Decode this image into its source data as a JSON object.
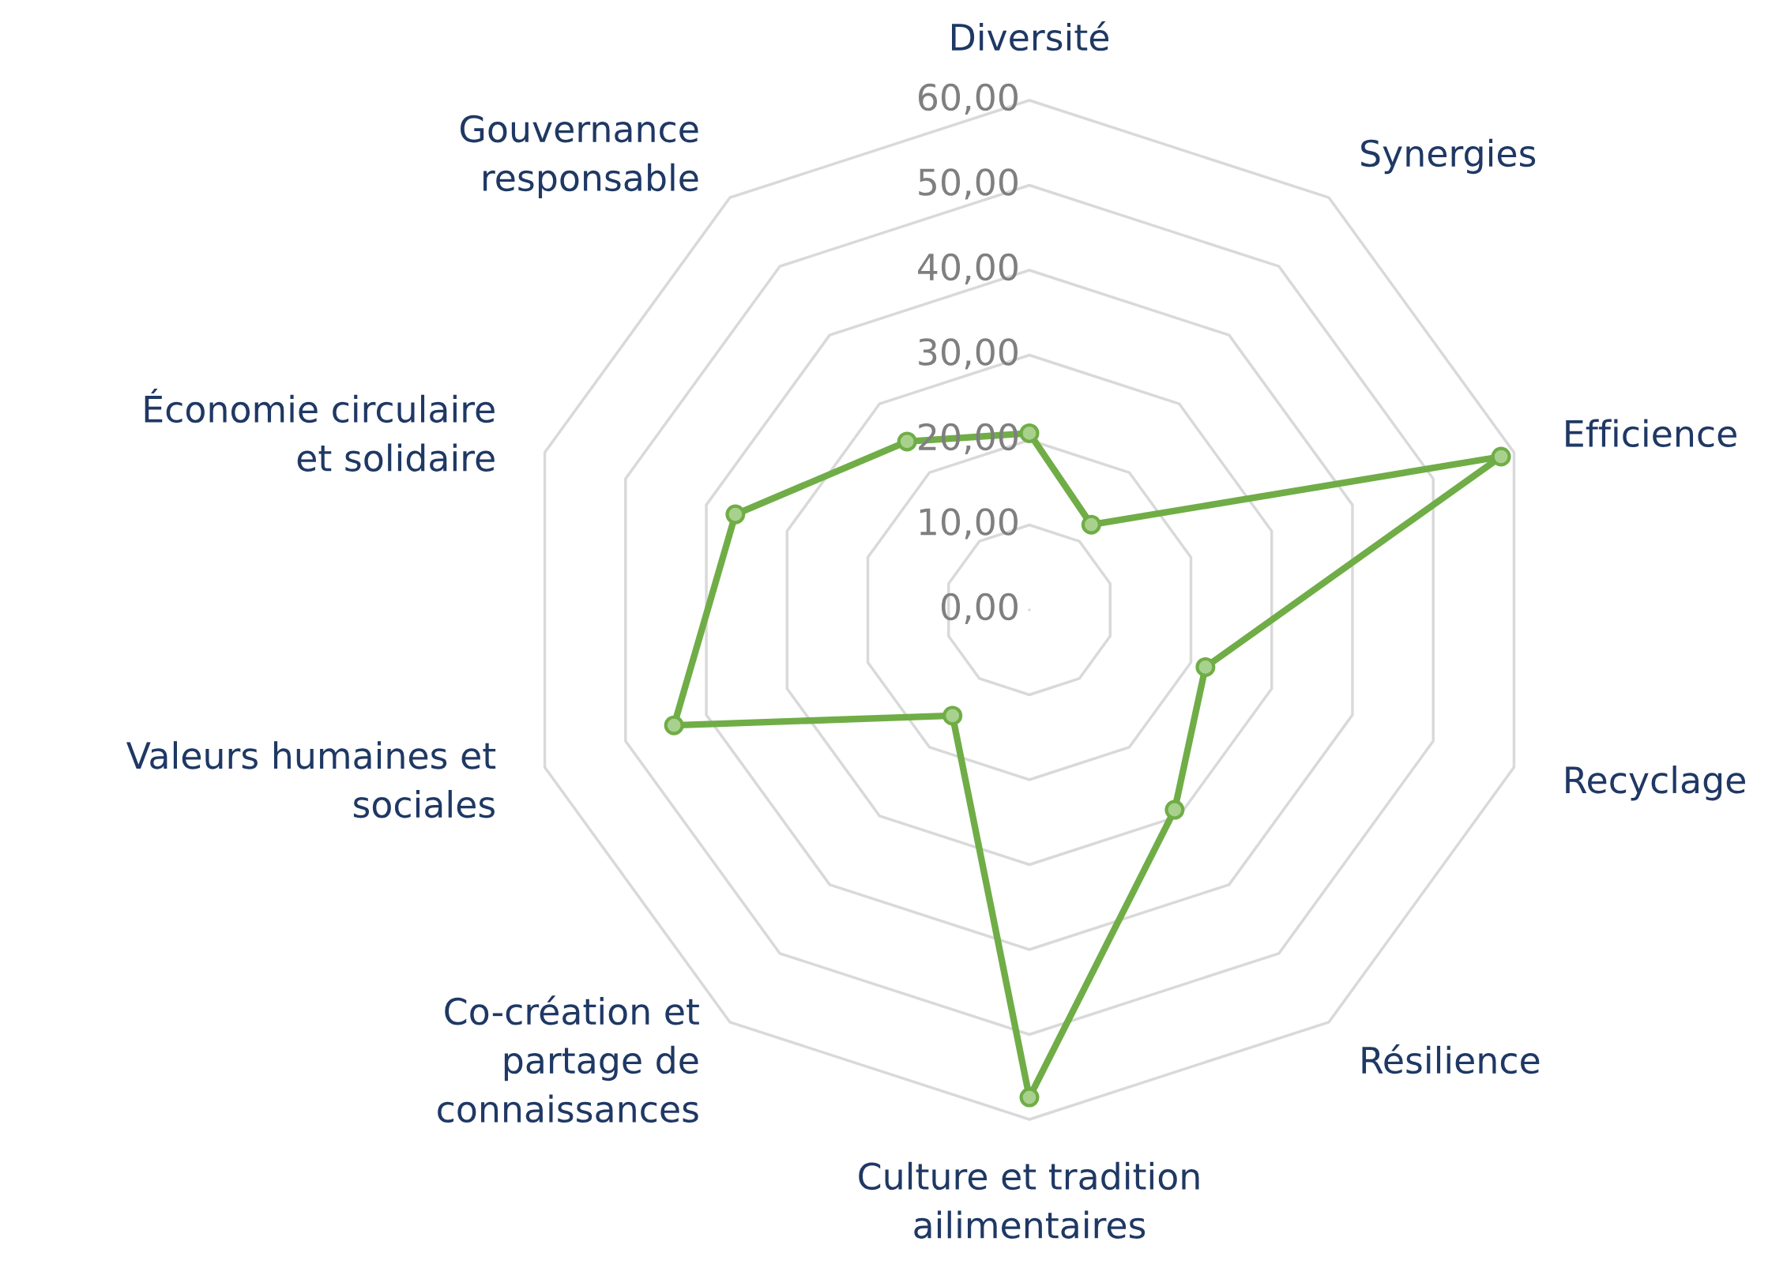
{
  "chart_data": {
    "type": "radar",
    "categories": [
      "Diversité",
      "Synergies",
      "Efficience",
      "Recyclage",
      "Résilience",
      "Culture et tradition\nailimentaires",
      "Co-création et\npartage de\nconnaissances",
      "Valeurs humaines et\nsociales",
      "Économie circulaire\net solidaire",
      "Gouvernance\nresponsable"
    ],
    "series": [
      {
        "color": "#70ad47",
        "values": [
          20.8,
          12.4,
          58.4,
          21.8,
          29.1,
          57.4,
          15.4,
          44.0,
          36.4,
          24.5
        ]
      }
    ],
    "ylim": [
      0,
      60
    ],
    "yticks": [
      {
        "value": 0,
        "label": "0,00"
      },
      {
        "value": 10,
        "label": "10,00"
      },
      {
        "value": 20,
        "label": "20,00"
      },
      {
        "value": 30,
        "label": "30,00"
      },
      {
        "value": 40,
        "label": "40,00"
      },
      {
        "value": 50,
        "label": "50,00"
      },
      {
        "value": 60,
        "label": "60,00"
      }
    ],
    "grid": true,
    "marker": "circle",
    "line_style": "solid"
  }
}
